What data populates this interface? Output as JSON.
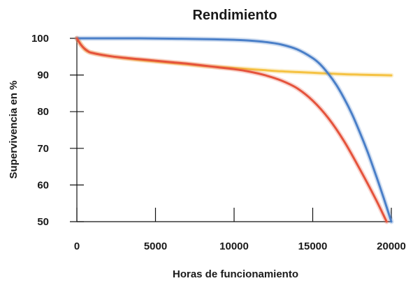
{
  "chart_data": {
    "type": "line",
    "title": "Rendimiento",
    "xlabel": "Horas de funcionamiento",
    "ylabel": "Supervivencia en %",
    "xlim": [
      0,
      20000
    ],
    "ylim": [
      50,
      100
    ],
    "x_ticks": [
      0,
      5000,
      10000,
      15000,
      20000
    ],
    "y_ticks": [
      50,
      60,
      70,
      80,
      90,
      100
    ],
    "x_tick_labels": [
      "0",
      "5000",
      "10000",
      "15000",
      "20000"
    ],
    "y_tick_labels": [
      "50",
      "60",
      "70",
      "80",
      "90",
      "100"
    ],
    "grid": false,
    "legend": "none",
    "series": [
      {
        "color": "#f5c242",
        "x": [
          0,
          500,
          1000,
          2000,
          3000,
          4000,
          5000,
          6000,
          7000,
          8000,
          9000,
          10000,
          11000,
          12000,
          13000,
          14000,
          15000,
          16000,
          17000,
          18000,
          19000,
          20000
        ],
        "y": [
          100,
          97,
          96,
          95.2,
          94.6,
          94.1,
          93.7,
          93.3,
          92.9,
          92.5,
          92.2,
          91.9,
          91.6,
          91.3,
          91.0,
          90.8,
          90.6,
          90.4,
          90.2,
          90.1,
          90.0,
          89.9
        ]
      },
      {
        "color": "#4a7fc8",
        "x": [
          0,
          2000,
          4000,
          6000,
          8000,
          10000,
          11000,
          12000,
          13000,
          14000,
          15000,
          15500,
          16000,
          16500,
          17000,
          17500,
          18000,
          18500,
          19000,
          19500,
          20000
        ],
        "y": [
          100,
          100,
          100,
          99.9,
          99.8,
          99.6,
          99.4,
          99.0,
          98.3,
          97.0,
          94.6,
          92.8,
          90.3,
          87.3,
          83.6,
          79.3,
          74.3,
          68.9,
          62.9,
          56.6,
          50
        ]
      },
      {
        "color": "#e5533c",
        "x": [
          0,
          300,
          700,
          1000,
          2000,
          3000,
          4000,
          5000,
          6000,
          7000,
          8000,
          9000,
          10000,
          11000,
          12000,
          13000,
          14000,
          15000,
          16000,
          17000,
          18000,
          19000,
          19700
        ],
        "y": [
          100,
          98,
          96.5,
          96,
          95.2,
          94.7,
          94.3,
          93.9,
          93.5,
          93.1,
          92.6,
          92.1,
          91.6,
          90.9,
          89.9,
          88.5,
          86.4,
          83.0,
          78.2,
          71.9,
          64.3,
          56.2,
          50
        ]
      }
    ]
  }
}
